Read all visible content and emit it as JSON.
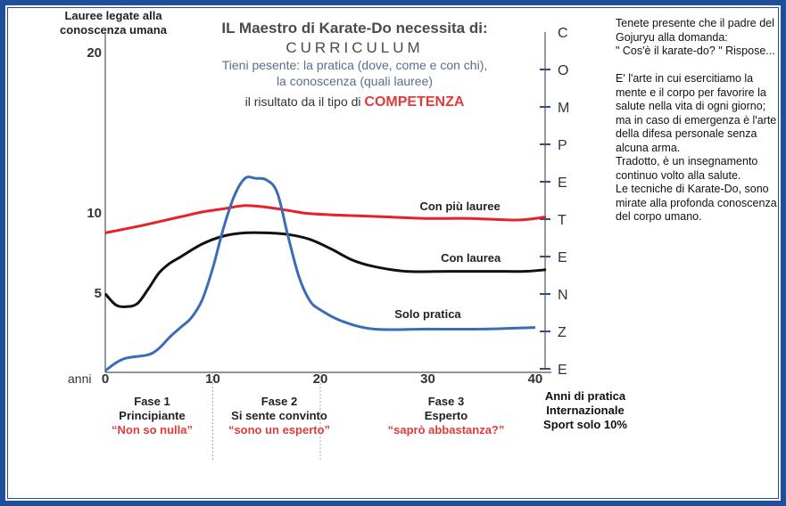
{
  "title": "IL Maestro di Karate-Do necessita di:",
  "subtitle": "CURRICULUM",
  "title_lines": [
    "Tieni pesente: la pratica (dove, come e con chi),",
    "la conoscenza (quali lauree)"
  ],
  "title_line3_prefix": "il risultato da il tipo di",
  "title_highlight": "COMPETENZA",
  "ylabel": "Lauree legate alla conoscenza umana",
  "xlabel_start": "anni",
  "x_unit_label": "Anni di pratica Internazionale Sport solo 10%",
  "side_note": "Tenete presente che il padre del Gojuryu alla domanda:\n\" Cos'è il karate-do? \" Rispose...\n\nE' l'arte in cui esercitiamo la mente e il corpo per favorire la salute nella vita di ogni giorno; ma in caso di emergenza è l'arte della difesa personale senza alcuna arma.\nTradotto, è un insegnamento continuo volto alla salute.\nLe tecniche di Karate-Do, sono mirate alla profonda conoscenza del corpo umano.",
  "competence_axis_letters": [
    "C",
    "O",
    "M",
    "P",
    "E",
    "T",
    "E",
    "N",
    "Z",
    "E"
  ],
  "phases": [
    {
      "title": "Fase 1",
      "name": "Principiante",
      "quote": "“Non so nulla”"
    },
    {
      "title": "Fase 2",
      "name": "Si sente convinto",
      "quote": "“sono un esperto”"
    },
    {
      "title": "Fase 3",
      "name": "Esperto",
      "quote": "“saprò abbastanza?”"
    }
  ],
  "chart_data": {
    "type": "line",
    "xlabel": "Anni di pratica Internazionale Sport solo 10%",
    "ylabel": "Lauree legate alla conoscenza umana",
    "xlim": [
      0,
      41
    ],
    "ylim": [
      0,
      20
    ],
    "x_ticks": [
      0,
      10,
      20,
      30,
      40
    ],
    "y_ticks": [
      5,
      10,
      20
    ],
    "grid": false,
    "series": [
      {
        "name": "Con più lauree",
        "color": "#e8202a",
        "x": [
          0,
          3,
          5,
          7,
          9,
          11,
          13,
          15,
          17,
          19,
          22,
          26,
          30,
          34,
          38,
          40,
          41
        ],
        "y": [
          8.7,
          9.1,
          9.4,
          9.7,
          10.0,
          10.2,
          10.4,
          10.3,
          10.1,
          9.9,
          9.8,
          9.7,
          9.6,
          9.6,
          9.5,
          9.6,
          9.7
        ]
      },
      {
        "name": "Con laurea",
        "color": "#111111",
        "x": [
          0,
          1,
          2,
          3,
          4,
          5,
          6,
          7,
          9,
          11,
          13,
          15,
          17,
          19,
          21,
          23,
          25,
          28,
          32,
          36,
          39,
          41
        ],
        "y": [
          4.9,
          4.2,
          4.1,
          4.3,
          5.2,
          6.2,
          6.8,
          7.2,
          8.0,
          8.5,
          8.7,
          8.7,
          8.6,
          8.3,
          7.7,
          7.0,
          6.6,
          6.3,
          6.3,
          6.3,
          6.3,
          6.4
        ]
      },
      {
        "name": "Solo pratica",
        "color": "#3a6db5",
        "x": [
          0,
          1,
          2,
          4,
          5,
          6,
          7,
          8,
          9,
          10,
          11,
          12,
          13,
          14,
          15,
          16,
          17,
          18,
          19,
          20,
          22,
          25,
          30,
          35,
          40
        ],
        "y": [
          0.1,
          0.6,
          0.9,
          1.1,
          1.5,
          2.2,
          2.8,
          3.4,
          4.5,
          6.5,
          9.0,
          11.0,
          12.1,
          12.1,
          12.0,
          11.2,
          8.5,
          6.0,
          4.5,
          3.9,
          3.2,
          2.7,
          2.7,
          2.7,
          2.8
        ]
      }
    ]
  }
}
